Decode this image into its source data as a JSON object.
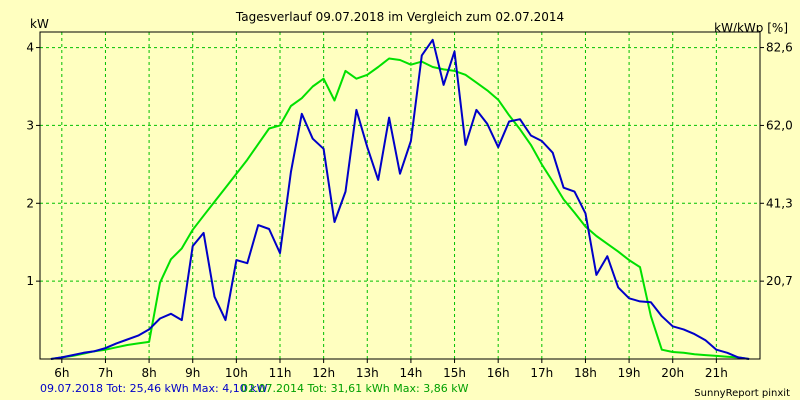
{
  "chart_data": {
    "type": "line",
    "title": "Tagesverlauf 09.07.2018 im Vergleich zum 02.07.2014",
    "ylabel": "kW",
    "y2label": "kW/kWp [%]",
    "ylim": [
      0,
      4.2
    ],
    "yticks": [
      "1",
      "2",
      "3",
      "4"
    ],
    "y2ticks": [
      "20,7",
      "41,3",
      "62,0",
      "82,6"
    ],
    "xticks": [
      "6h",
      "7h",
      "8h",
      "9h",
      "10h",
      "11h",
      "12h",
      "13h",
      "14h",
      "15h",
      "16h",
      "17h",
      "18h",
      "19h",
      "20h",
      "21h"
    ],
    "xlim": [
      5.5,
      22
    ],
    "grid": true,
    "series": [
      {
        "name": "09.07.2018",
        "color": "#0000c8",
        "points": [
          [
            5.75,
            0.0
          ],
          [
            6.0,
            0.02
          ],
          [
            6.25,
            0.05
          ],
          [
            6.5,
            0.08
          ],
          [
            6.75,
            0.1
          ],
          [
            7.0,
            0.14
          ],
          [
            7.25,
            0.2
          ],
          [
            7.5,
            0.25
          ],
          [
            7.75,
            0.3
          ],
          [
            8.0,
            0.38
          ],
          [
            8.25,
            0.52
          ],
          [
            8.5,
            0.58
          ],
          [
            8.75,
            0.5
          ],
          [
            9.0,
            1.45
          ],
          [
            9.25,
            1.62
          ],
          [
            9.5,
            0.8
          ],
          [
            9.75,
            0.5
          ],
          [
            10.0,
            1.27
          ],
          [
            10.25,
            1.23
          ],
          [
            10.5,
            1.72
          ],
          [
            10.75,
            1.67
          ],
          [
            11.0,
            1.36
          ],
          [
            11.25,
            2.4
          ],
          [
            11.5,
            3.15
          ],
          [
            11.75,
            2.83
          ],
          [
            12.0,
            2.7
          ],
          [
            12.25,
            1.76
          ],
          [
            12.5,
            2.15
          ],
          [
            12.75,
            3.2
          ],
          [
            13.0,
            2.72
          ],
          [
            13.25,
            2.3
          ],
          [
            13.5,
            3.1
          ],
          [
            13.75,
            2.38
          ],
          [
            14.0,
            2.8
          ],
          [
            14.25,
            3.9
          ],
          [
            14.5,
            4.1
          ],
          [
            14.75,
            3.52
          ],
          [
            15.0,
            3.95
          ],
          [
            15.25,
            2.75
          ],
          [
            15.5,
            3.2
          ],
          [
            15.75,
            3.02
          ],
          [
            16.0,
            2.72
          ],
          [
            16.25,
            3.05
          ],
          [
            16.5,
            3.08
          ],
          [
            16.75,
            2.87
          ],
          [
            17.0,
            2.8
          ],
          [
            17.25,
            2.65
          ],
          [
            17.5,
            2.2
          ],
          [
            17.75,
            2.15
          ],
          [
            18.0,
            1.87
          ],
          [
            18.25,
            1.08
          ],
          [
            18.5,
            1.32
          ],
          [
            18.75,
            0.92
          ],
          [
            19.0,
            0.78
          ],
          [
            19.25,
            0.74
          ],
          [
            19.5,
            0.73
          ],
          [
            19.75,
            0.55
          ],
          [
            20.0,
            0.42
          ],
          [
            20.25,
            0.38
          ],
          [
            20.5,
            0.32
          ],
          [
            20.75,
            0.24
          ],
          [
            21.0,
            0.12
          ],
          [
            21.25,
            0.08
          ],
          [
            21.5,
            0.02
          ],
          [
            21.75,
            0.0
          ]
        ]
      },
      {
        "name": "02.07.2014",
        "color": "#00e000",
        "points": [
          [
            5.75,
            0.0
          ],
          [
            6.0,
            0.02
          ],
          [
            6.25,
            0.04
          ],
          [
            6.5,
            0.07
          ],
          [
            6.75,
            0.1
          ],
          [
            7.0,
            0.12
          ],
          [
            7.25,
            0.15
          ],
          [
            7.5,
            0.18
          ],
          [
            7.75,
            0.2
          ],
          [
            8.0,
            0.22
          ],
          [
            8.25,
            0.98
          ],
          [
            8.5,
            1.28
          ],
          [
            8.75,
            1.42
          ],
          [
            9.0,
            1.66
          ],
          [
            9.25,
            1.84
          ],
          [
            9.5,
            2.02
          ],
          [
            9.75,
            2.2
          ],
          [
            10.0,
            2.38
          ],
          [
            10.25,
            2.56
          ],
          [
            10.5,
            2.76
          ],
          [
            10.75,
            2.96
          ],
          [
            11.0,
            3.0
          ],
          [
            11.25,
            3.25
          ],
          [
            11.5,
            3.35
          ],
          [
            11.75,
            3.5
          ],
          [
            12.0,
            3.6
          ],
          [
            12.25,
            3.32
          ],
          [
            12.5,
            3.7
          ],
          [
            12.75,
            3.6
          ],
          [
            13.0,
            3.65
          ],
          [
            13.25,
            3.75
          ],
          [
            13.5,
            3.86
          ],
          [
            13.75,
            3.84
          ],
          [
            14.0,
            3.78
          ],
          [
            14.25,
            3.82
          ],
          [
            14.5,
            3.75
          ],
          [
            14.75,
            3.72
          ],
          [
            15.0,
            3.7
          ],
          [
            15.25,
            3.65
          ],
          [
            15.5,
            3.55
          ],
          [
            15.75,
            3.45
          ],
          [
            16.0,
            3.33
          ],
          [
            16.25,
            3.13
          ],
          [
            16.5,
            2.95
          ],
          [
            16.75,
            2.75
          ],
          [
            17.0,
            2.5
          ],
          [
            17.25,
            2.28
          ],
          [
            17.5,
            2.05
          ],
          [
            17.75,
            1.88
          ],
          [
            18.0,
            1.7
          ],
          [
            18.25,
            1.58
          ],
          [
            18.5,
            1.48
          ],
          [
            18.75,
            1.38
          ],
          [
            19.0,
            1.27
          ],
          [
            19.25,
            1.18
          ],
          [
            19.5,
            0.55
          ],
          [
            19.75,
            0.12
          ],
          [
            20.0,
            0.09
          ],
          [
            20.25,
            0.08
          ],
          [
            20.5,
            0.06
          ],
          [
            20.75,
            0.05
          ],
          [
            21.0,
            0.04
          ],
          [
            21.25,
            0.03
          ],
          [
            21.5,
            0.02
          ],
          [
            21.75,
            0.0
          ]
        ]
      }
    ]
  },
  "footer": {
    "blue": "09.07.2018 Tot: 25,46 kWh Max: 4,10 kW",
    "green": "02.07.2014 Tot: 31,61 kWh Max: 3,86 kW",
    "right": "SunnyReport pinxit"
  }
}
